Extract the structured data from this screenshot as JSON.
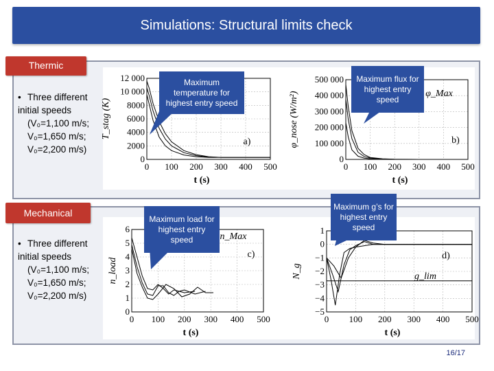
{
  "slide": {
    "title": "Simulations: Structural limits check",
    "page_number": "16/17"
  },
  "sections": {
    "thermic": {
      "label": "Thermic",
      "bullet_first": "Three different initial speeds",
      "bullet_lines": [
        "(V₀=1,100 m/s;",
        "V₀=1,650 m/s;",
        "V₀=2,200 m/s)"
      ]
    },
    "mechanical": {
      "label": "Mechanical",
      "bullet_first": "Three different initial speeds",
      "bullet_lines": [
        "(V₀=1,100 m/s;",
        "V₀=1,650 m/s;",
        "V₀=2,200 m/s)"
      ]
    }
  },
  "callouts": {
    "a": "Maximum temperature for highest entry speed",
    "b": "Maximum flux for highest entry speed",
    "c": "Maximum load for highest entry speed",
    "d": "Maximum g’s for highest entry speed"
  },
  "colors": {
    "title_bg": "#2b4fa0",
    "tag_bg": "#c0372d",
    "callout_bg": "#2b4fa0",
    "panel_bg": "#eef0f5"
  },
  "chart_data": [
    {
      "type": "line",
      "panel": "a)",
      "xlabel": "t (s)",
      "ylabel": "T_stag (K)",
      "xlim": [
        0,
        500
      ],
      "ylim": [
        0,
        12000
      ],
      "xticks": [
        "0",
        "100",
        "200",
        "300",
        "400",
        "500"
      ],
      "yticks": [
        "0",
        "2000",
        "4000",
        "6000",
        "8000",
        "10 000",
        "12 000"
      ],
      "grid": true,
      "series": [
        {
          "x": [
            0,
            10,
            25,
            50,
            75,
            100,
            150,
            200,
            250,
            300,
            400,
            500
          ],
          "values": [
            11600,
            10500,
            8300,
            5600,
            3800,
            2600,
            1300,
            700,
            400,
            300,
            300,
            300
          ]
        },
        {
          "x": [
            0,
            10,
            25,
            50,
            75,
            100,
            150,
            200,
            250,
            300,
            400,
            500
          ],
          "values": [
            10600,
            9400,
            7200,
            4600,
            3000,
            2000,
            1000,
            550,
            350,
            300,
            300,
            300
          ]
        },
        {
          "x": [
            0,
            10,
            25,
            50,
            75,
            100,
            150,
            200,
            250,
            300,
            400,
            500
          ],
          "values": [
            9600,
            8100,
            5800,
            3300,
            2000,
            1300,
            650,
            400,
            300,
            300,
            300,
            300
          ]
        }
      ]
    },
    {
      "type": "line",
      "panel": "b)",
      "xlabel": "t (s)",
      "ylabel": "φ_nose (W/m²)",
      "annotation": "φ_Max",
      "xlim": [
        0,
        500
      ],
      "ylim": [
        0,
        500000
      ],
      "xticks": [
        "0",
        "100",
        "200",
        "300",
        "400",
        "500"
      ],
      "yticks": [
        "0",
        "100 000",
        "200 000",
        "300 000",
        "400 000",
        "500 000"
      ],
      "grid": true,
      "series": [
        {
          "x": [
            0,
            10,
            25,
            50,
            75,
            100,
            150,
            200,
            300,
            500
          ],
          "values": [
            470000,
            330000,
            180000,
            70000,
            30000,
            12000,
            4000,
            1000,
            0,
            0
          ]
        },
        {
          "x": [
            0,
            10,
            25,
            50,
            75,
            100,
            150,
            200,
            300,
            500
          ],
          "values": [
            380000,
            250000,
            130000,
            45000,
            18000,
            8000,
            2000,
            500,
            0,
            0
          ]
        },
        {
          "x": [
            0,
            10,
            25,
            50,
            75,
            100,
            150,
            200,
            300,
            500
          ],
          "values": [
            230000,
            140000,
            60000,
            20000,
            8000,
            3000,
            800,
            200,
            0,
            0
          ]
        }
      ]
    },
    {
      "type": "line",
      "panel": "c)",
      "xlabel": "t (s)",
      "ylabel": "n_load",
      "annotation": "n_Max",
      "xlim": [
        0,
        500
      ],
      "ylim": [
        0,
        6
      ],
      "xticks": [
        "0",
        "100",
        "200",
        "300",
        "400",
        "500"
      ],
      "yticks": [
        "0",
        "1",
        "2",
        "3",
        "4",
        "5",
        "6"
      ],
      "grid": true,
      "series": [
        {
          "x": [
            0,
            20,
            40,
            60,
            80,
            100,
            120,
            140,
            160,
            180,
            200,
            240
          ],
          "values": [
            5.4,
            4.0,
            2.6,
            1.7,
            1.6,
            2.0,
            1.7,
            1.3,
            1.6,
            1.5,
            1.4,
            1.5
          ]
        },
        {
          "x": [
            0,
            20,
            40,
            60,
            80,
            100,
            120,
            140,
            160,
            180,
            200,
            240,
            280
          ],
          "values": [
            4.9,
            3.3,
            2.1,
            1.3,
            1.2,
            1.9,
            1.9,
            1.4,
            1.2,
            1.5,
            1.6,
            1.3,
            1.5
          ]
        },
        {
          "x": [
            0,
            20,
            40,
            60,
            80,
            100,
            130,
            160,
            190,
            220,
            250,
            280,
            310
          ],
          "values": [
            4.6,
            2.8,
            1.8,
            1.0,
            0.9,
            1.3,
            2.0,
            1.7,
            1.1,
            1.3,
            1.8,
            1.4,
            1.4
          ]
        }
      ]
    },
    {
      "type": "line",
      "panel": "d)",
      "xlabel": "t (s)",
      "ylabel": "N_g",
      "annotation": "g_lim",
      "xlim": [
        0,
        500
      ],
      "ylim": [
        -5,
        1
      ],
      "xticks": [
        "0",
        "100",
        "200",
        "300",
        "400",
        "500"
      ],
      "yticks": [
        "−5",
        "−4",
        "−3",
        "−2",
        "−1",
        "0",
        "1"
      ],
      "grid": true,
      "reference_line": -2.7,
      "series": [
        {
          "x": [
            0,
            15,
            30,
            45,
            60,
            80,
            100,
            130,
            160,
            200,
            300,
            500
          ],
          "values": [
            -1.0,
            -2.6,
            -4.5,
            -2.2,
            -0.6,
            -0.3,
            -0.2,
            -0.1,
            0,
            0,
            0,
            0
          ]
        },
        {
          "x": [
            0,
            20,
            40,
            60,
            80,
            100,
            130,
            160,
            200,
            300,
            500
          ],
          "values": [
            -1.0,
            -2.2,
            -3.5,
            -1.5,
            -0.4,
            -0.1,
            0.2,
            0,
            0,
            0,
            0
          ]
        },
        {
          "x": [
            0,
            25,
            50,
            75,
            100,
            130,
            160,
            200,
            300,
            500
          ],
          "values": [
            -1.0,
            -1.6,
            -2.5,
            -1.0,
            -0.2,
            0.3,
            0.1,
            0,
            0,
            0
          ]
        }
      ]
    }
  ]
}
